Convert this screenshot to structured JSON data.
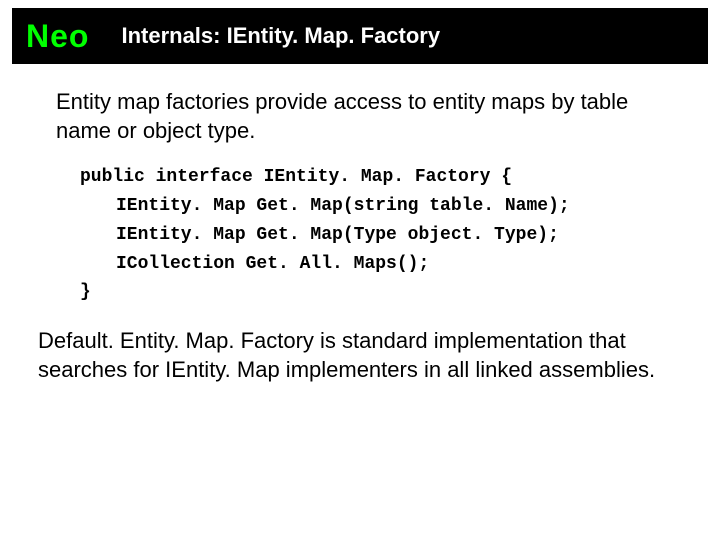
{
  "header": {
    "logo": "Neo",
    "title": "Internals: IEntity. Map. Factory"
  },
  "intro": "Entity map factories provide access to entity maps by table name or object type.",
  "code": {
    "line1": "public interface IEntity. Map. Factory {",
    "line2": "IEntity. Map Get. Map(string table. Name);",
    "line3": "IEntity. Map Get. Map(Type object. Type);",
    "line4": "ICollection Get. All. Maps();",
    "line5": "}"
  },
  "outro": "Default. Entity. Map. Factory is standard implementation that searches for IEntity. Map implementers in all linked assemblies.",
  "colors": {
    "logo_fg": "#00ff00",
    "header_bg": "#000000",
    "title_fg": "#ffffff",
    "page_bg": "#ffffff",
    "text": "#000000"
  }
}
